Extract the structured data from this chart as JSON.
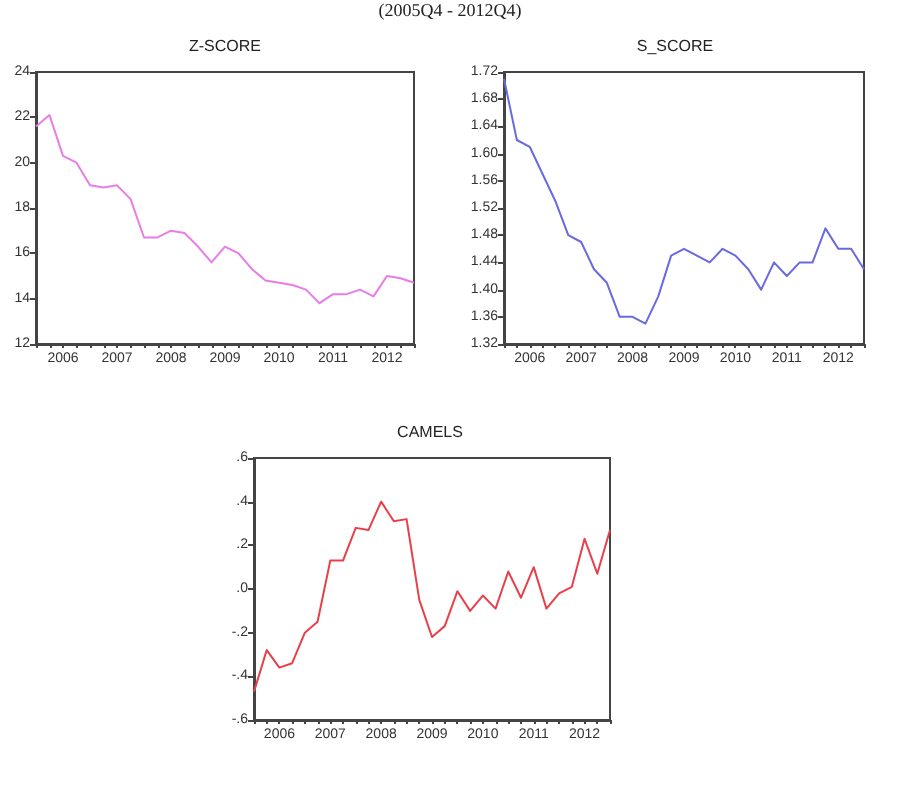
{
  "chart_data": [
    {
      "type": "line",
      "title": "Z-SCORE",
      "annotations": [
        "(2005Q4 - 2012Q4)"
      ],
      "categories": [
        null,
        null,
        "2006",
        null,
        null,
        null,
        "2007",
        null,
        null,
        null,
        "2008",
        null,
        null,
        null,
        "2009",
        null,
        null,
        null,
        "2010",
        null,
        null,
        null,
        "2011",
        null,
        null,
        null,
        "2012",
        null,
        null
      ],
      "series": [
        {
          "color": "#e87de8",
          "values": [
            21.6,
            22.1,
            20.3,
            20.0,
            19.0,
            18.9,
            19.0,
            18.4,
            16.7,
            16.7,
            17.0,
            16.9,
            16.3,
            15.6,
            16.3,
            16.0,
            15.3,
            14.8,
            14.7,
            14.6,
            14.4,
            13.8,
            14.2,
            14.2,
            14.4,
            14.1,
            15.0,
            14.9,
            14.7
          ]
        }
      ],
      "ylim": [
        12,
        24
      ],
      "yticks": [
        12,
        14,
        16,
        18,
        20,
        22,
        24
      ],
      "grid": false,
      "marker": "none",
      "line_style": "solid"
    },
    {
      "type": "line",
      "title": "S_SCORE",
      "categories": [
        null,
        null,
        "2006",
        null,
        null,
        null,
        "2007",
        null,
        null,
        null,
        "2008",
        null,
        null,
        null,
        "2009",
        null,
        null,
        null,
        "2010",
        null,
        null,
        null,
        "2011",
        null,
        null,
        null,
        "2012",
        null,
        null
      ],
      "series": [
        {
          "color": "#6a6ae0",
          "values": [
            1.71,
            1.62,
            1.61,
            1.57,
            1.53,
            1.48,
            1.47,
            1.43,
            1.41,
            1.36,
            1.36,
            1.35,
            1.39,
            1.45,
            1.46,
            1.45,
            1.44,
            1.46,
            1.45,
            1.43,
            1.4,
            1.44,
            1.42,
            1.44,
            1.44,
            1.49,
            1.46,
            1.46,
            1.43
          ]
        }
      ],
      "ylim": [
        1.32,
        1.72
      ],
      "yticks": [
        {
          "value": 1.32,
          "label": "1.32"
        },
        {
          "value": 1.36,
          "label": "1.36"
        },
        {
          "value": 1.4,
          "label": "1.40"
        },
        {
          "value": 1.44,
          "label": "1.44"
        },
        {
          "value": 1.48,
          "label": "1.48"
        },
        {
          "value": 1.52,
          "label": "1.52"
        },
        {
          "value": 1.56,
          "label": "1.56"
        },
        {
          "value": 1.6,
          "label": "1.60"
        },
        {
          "value": 1.64,
          "label": "1.64"
        },
        {
          "value": 1.68,
          "label": "1.68"
        },
        {
          "value": 1.72,
          "label": "1.72"
        }
      ],
      "grid": false,
      "marker": "none",
      "line_style": "solid"
    },
    {
      "type": "line",
      "title": "CAMELS",
      "categories": [
        null,
        null,
        "2006",
        null,
        null,
        null,
        "2007",
        null,
        null,
        null,
        "2008",
        null,
        null,
        null,
        "2009",
        null,
        null,
        null,
        "2010",
        null,
        null,
        null,
        "2011",
        null,
        null,
        null,
        "2012",
        null,
        null
      ],
      "series": [
        {
          "color": "#e8404a",
          "values": [
            -0.47,
            -0.28,
            -0.36,
            -0.34,
            -0.2,
            -0.15,
            0.13,
            0.13,
            0.28,
            0.27,
            0.4,
            0.31,
            0.32,
            -0.05,
            -0.22,
            -0.17,
            -0.01,
            -0.1,
            -0.03,
            -0.09,
            0.08,
            -0.04,
            0.1,
            -0.09,
            -0.02,
            0.01,
            0.23,
            0.07,
            0.27
          ]
        }
      ],
      "ylim": [
        -0.6,
        0.6
      ],
      "yticks": [
        {
          "value": -0.6,
          "label": "-.6"
        },
        {
          "value": -0.4,
          "label": "-.4"
        },
        {
          "value": -0.2,
          "label": "-.2"
        },
        {
          "value": 0,
          "label": ".0"
        },
        {
          "value": 0.2,
          "label": ".2"
        },
        {
          "value": 0.4,
          "label": ".4"
        },
        {
          "value": 0.6,
          "label": ".6"
        }
      ],
      "grid": false,
      "marker": "none",
      "line_style": "solid"
    }
  ]
}
